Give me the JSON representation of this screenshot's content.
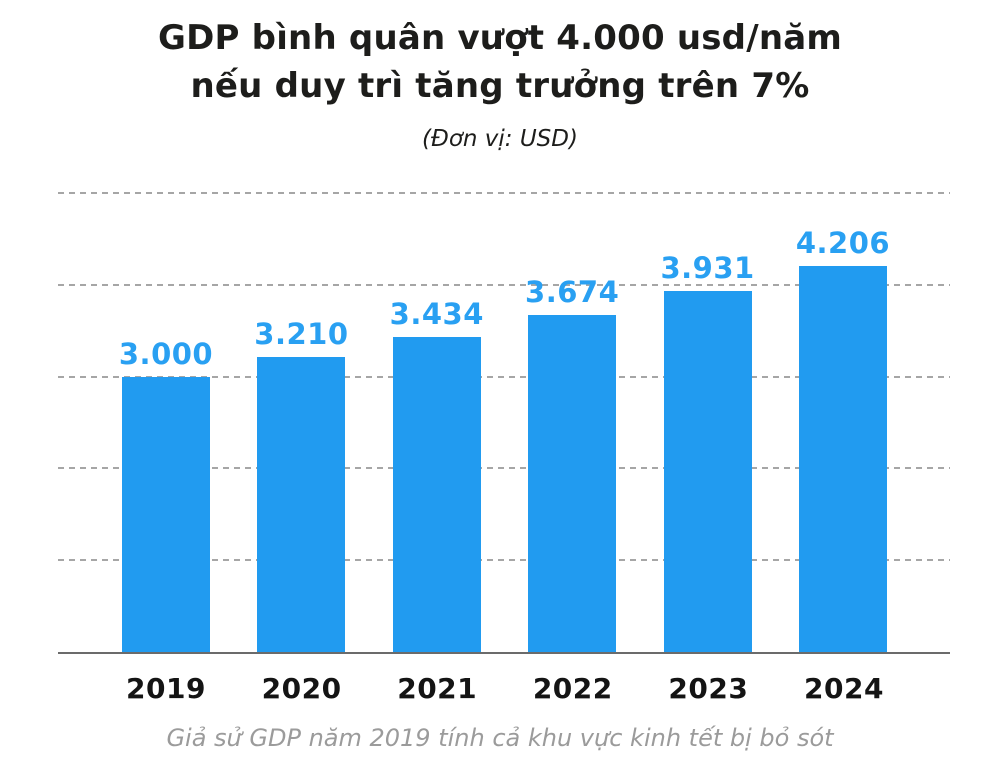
{
  "header": {
    "title": "GDP bình quân vượt 4.000 usd/năm\nnếu duy trì tăng trưởng trên 7%",
    "subtitle": "(Đơn vị: USD)"
  },
  "footer": {
    "note": "Giả sử GDP năm 2019 tính cả khu vực kinh tết bị bỏ sót"
  },
  "chart_data": {
    "type": "bar",
    "title": "GDP bình quân vượt 4.000 usd/năm nếu duy trì tăng trưởng trên 7%",
    "subtitle": "(Đơn vị: USD)",
    "categories": [
      "2019",
      "2020",
      "2021",
      "2022",
      "2023",
      "2024"
    ],
    "values": [
      3000,
      3210,
      3434,
      3674,
      3931,
      4206
    ],
    "value_labels": [
      "3.000",
      "3.210",
      "3.434",
      "3.674",
      "3.931",
      "4.206"
    ],
    "xlabel": "",
    "ylabel": "",
    "ylim": [
      0,
      5000
    ],
    "gridline_values": [
      1000,
      2000,
      3000,
      4000,
      5000
    ],
    "grid": "horizontal-dashed",
    "legend": "none",
    "note": "Giả sử GDP năm 2019 tính cả khu vực kinh tết bị bỏ sót",
    "colors": {
      "bar": "#219bf0",
      "value_label": "#29a0f2",
      "gridline": "#a6a6a6",
      "axis": "#6b6b6b",
      "title_text": "#1d1d1b",
      "year_label": "#141414",
      "note_text": "#9b9b9b",
      "background": "#ffffff"
    }
  }
}
